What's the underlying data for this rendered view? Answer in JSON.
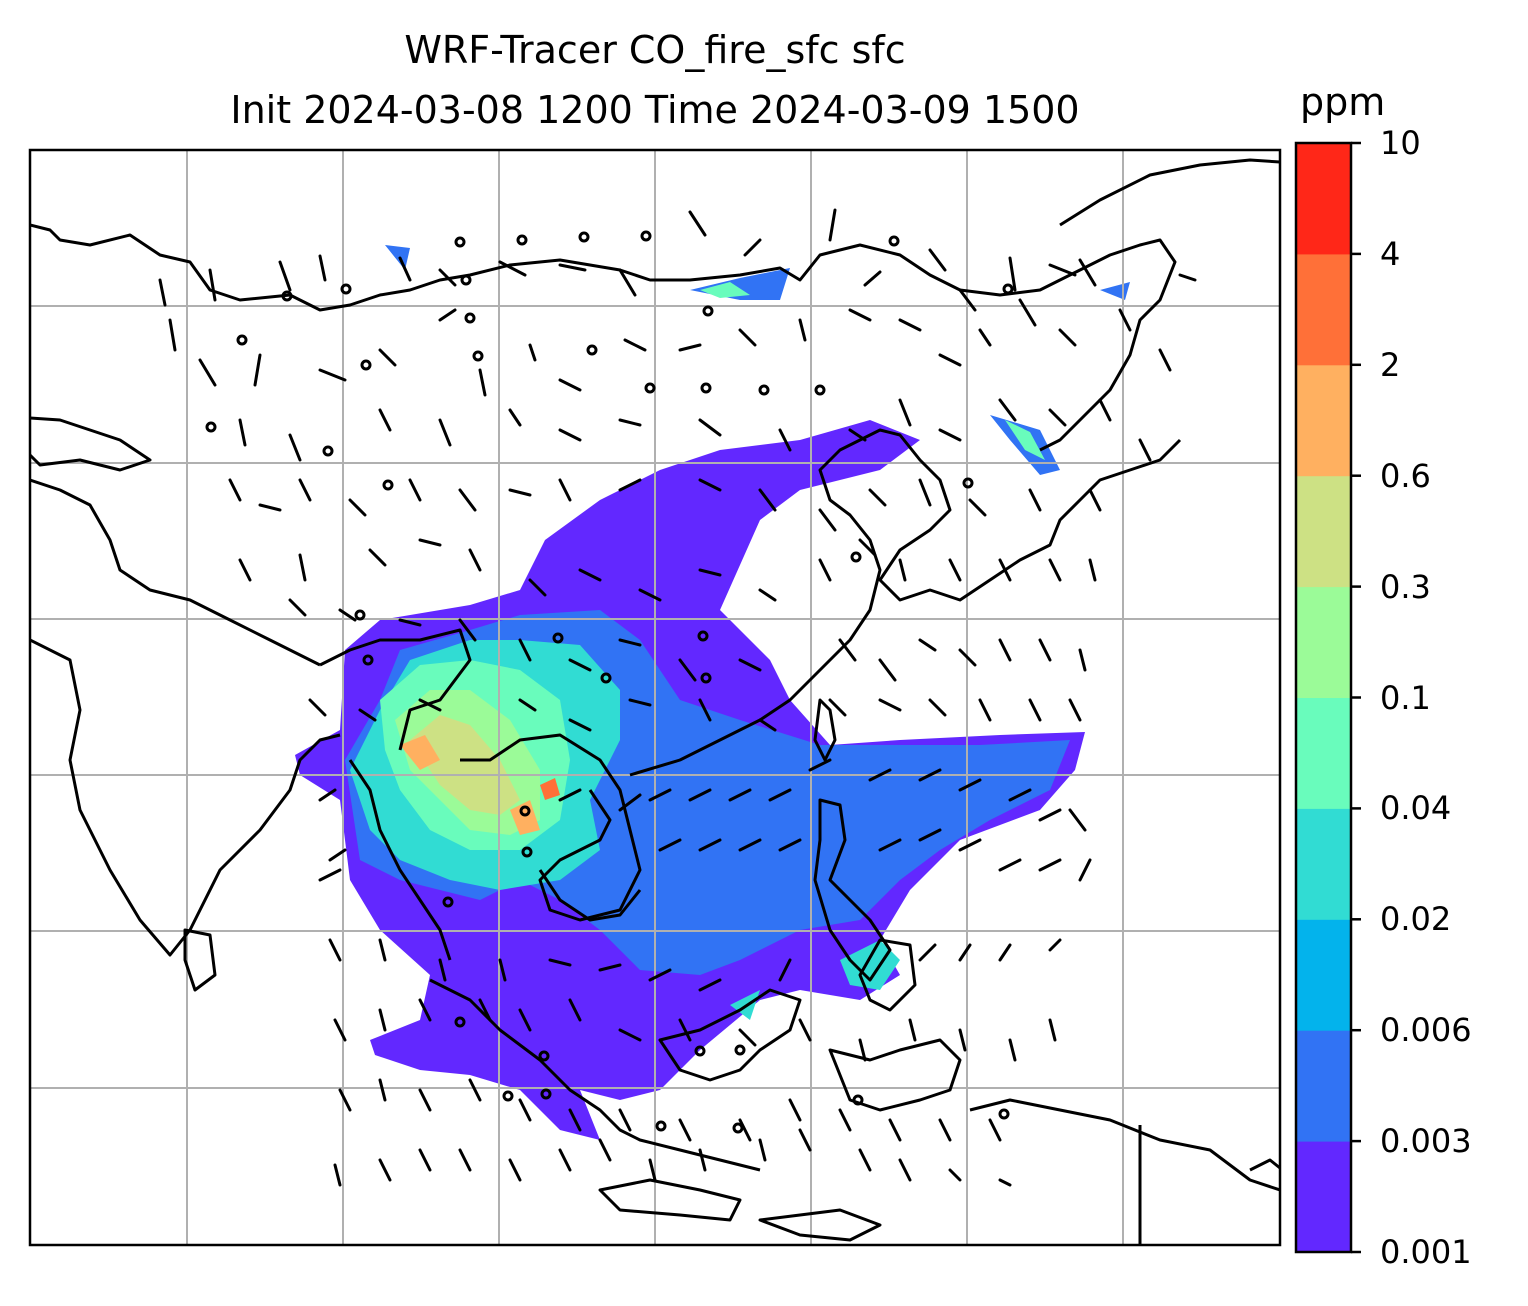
{
  "title": {
    "line1": "WRF-Tracer CO_fire_sfc sfc",
    "line2": "Init 2024-03-08 1200 Time 2024-03-09 1500"
  },
  "colorbar": {
    "unit": "ppm",
    "levels": [
      "0.001",
      "0.003",
      "0.006",
      "0.02",
      "0.04",
      "0.1",
      "0.3",
      "0.6",
      "2",
      "4",
      "10"
    ],
    "colors": [
      "#6228ff",
      "#3173f4",
      "#03b3ec",
      "#31dcd3",
      "#69fcbc",
      "#9bfb98",
      "#cde184",
      "#ffb060",
      "#ff7038",
      "#ff2718"
    ]
  },
  "map": {
    "grid": true,
    "gridline_color": "#b0b0b0",
    "coastline_color": "#000000",
    "wind_barbs": true
  }
}
